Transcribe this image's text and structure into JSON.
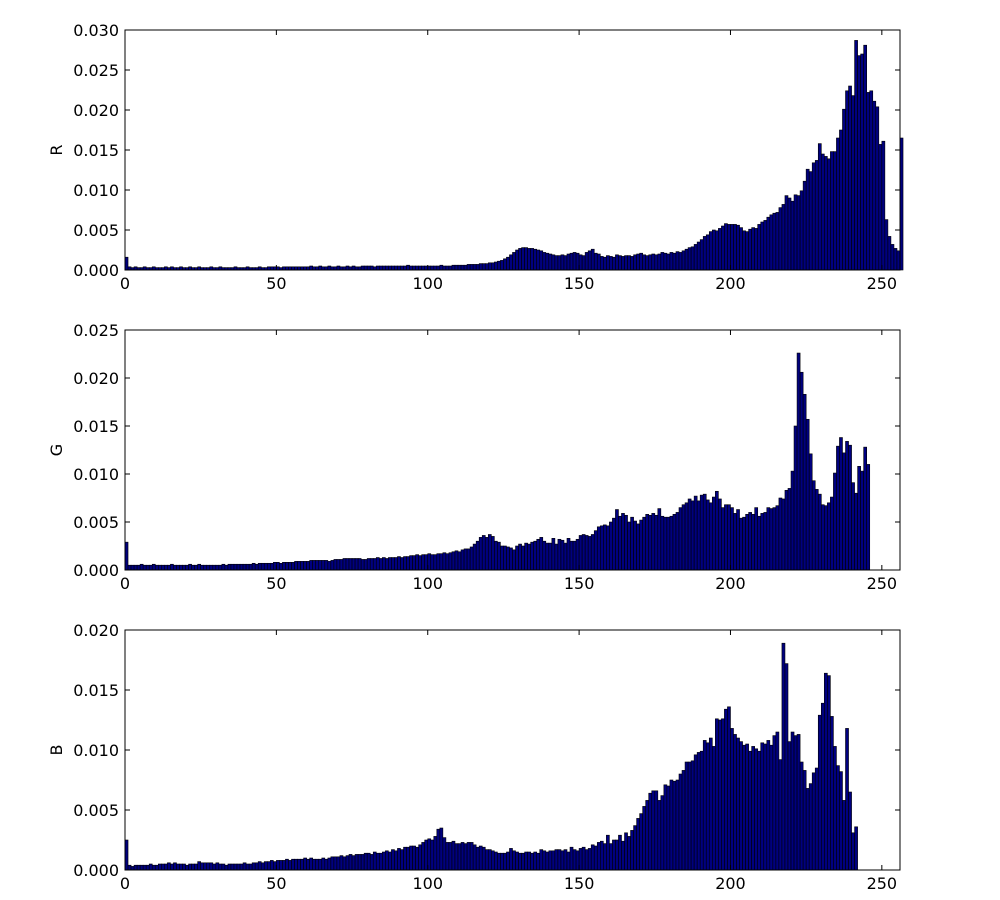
{
  "chart_data": [
    {
      "type": "bar",
      "title": "",
      "xlabel": "",
      "ylabel": "R",
      "xlim": [
        0,
        256
      ],
      "ylim": [
        0,
        0.03
      ],
      "xticks": [
        "0",
        "50",
        "100",
        "150",
        "200",
        "250"
      ],
      "yticks": [
        "0.000",
        "0.005",
        "0.010",
        "0.015",
        "0.020",
        "0.025",
        "0.030"
      ],
      "grid": false,
      "bar_color": "#00007f",
      "edge_color": "#000000",
      "bins": 256,
      "values": [
        0.0016,
        0.0004,
        0.0003,
        0.0004,
        0.0003,
        0.0003,
        0.0004,
        0.0003,
        0.0003,
        0.0004,
        0.0003,
        0.0003,
        0.0003,
        0.0004,
        0.0003,
        0.0004,
        0.0003,
        0.0003,
        0.0004,
        0.0003,
        0.0003,
        0.0004,
        0.0003,
        0.0003,
        0.0004,
        0.0003,
        0.0003,
        0.0003,
        0.0004,
        0.0003,
        0.0003,
        0.0004,
        0.0003,
        0.0003,
        0.0003,
        0.0003,
        0.0004,
        0.0003,
        0.0003,
        0.0003,
        0.0004,
        0.0003,
        0.0003,
        0.0003,
        0.0004,
        0.0003,
        0.0003,
        0.0004,
        0.0004,
        0.0004,
        0.0004,
        0.0003,
        0.0004,
        0.0004,
        0.0004,
        0.0004,
        0.0004,
        0.0004,
        0.0004,
        0.0004,
        0.0004,
        0.0005,
        0.0004,
        0.0004,
        0.0005,
        0.0004,
        0.0004,
        0.0005,
        0.0004,
        0.0004,
        0.0005,
        0.0004,
        0.0004,
        0.0005,
        0.0004,
        0.0005,
        0.0004,
        0.0004,
        0.0005,
        0.0005,
        0.0005,
        0.0005,
        0.0004,
        0.0005,
        0.0005,
        0.0005,
        0.0005,
        0.0005,
        0.0005,
        0.0005,
        0.0005,
        0.0005,
        0.0005,
        0.0006,
        0.0005,
        0.0005,
        0.0005,
        0.0005,
        0.0005,
        0.0005,
        0.0005,
        0.0005,
        0.0005,
        0.0005,
        0.0006,
        0.0005,
        0.0005,
        0.0005,
        0.0006,
        0.0006,
        0.0006,
        0.0006,
        0.0006,
        0.0007,
        0.0007,
        0.0007,
        0.0007,
        0.0008,
        0.0008,
        0.0008,
        0.0009,
        0.0009,
        0.001,
        0.0011,
        0.0012,
        0.0014,
        0.0016,
        0.0019,
        0.0022,
        0.0025,
        0.0027,
        0.0028,
        0.0028,
        0.0027,
        0.0027,
        0.0026,
        0.0025,
        0.0024,
        0.0022,
        0.0021,
        0.002,
        0.0019,
        0.0018,
        0.0018,
        0.0019,
        0.0018,
        0.002,
        0.0021,
        0.0022,
        0.0021,
        0.0019,
        0.0018,
        0.0022,
        0.0024,
        0.0026,
        0.0021,
        0.002,
        0.0017,
        0.0016,
        0.0018,
        0.0017,
        0.0016,
        0.0019,
        0.0018,
        0.0017,
        0.0018,
        0.0018,
        0.0017,
        0.0019,
        0.002,
        0.0021,
        0.0019,
        0.0018,
        0.0019,
        0.002,
        0.0019,
        0.002,
        0.0022,
        0.0021,
        0.002,
        0.0022,
        0.0021,
        0.0023,
        0.0022,
        0.0024,
        0.0026,
        0.0028,
        0.0029,
        0.0032,
        0.0035,
        0.0038,
        0.0042,
        0.0044,
        0.0048,
        0.005,
        0.0049,
        0.0052,
        0.0055,
        0.0058,
        0.0057,
        0.0057,
        0.0057,
        0.0056,
        0.0053,
        0.0049,
        0.0048,
        0.0051,
        0.0053,
        0.0052,
        0.0057,
        0.006,
        0.0062,
        0.0066,
        0.0069,
        0.0071,
        0.0072,
        0.0078,
        0.0082,
        0.0093,
        0.009,
        0.0086,
        0.0094,
        0.0093,
        0.0099,
        0.0111,
        0.0126,
        0.0123,
        0.0134,
        0.0137,
        0.0158,
        0.0145,
        0.0142,
        0.0139,
        0.0148,
        0.0148,
        0.0165,
        0.0175,
        0.0201,
        0.0224,
        0.023,
        0.0218,
        0.0287,
        0.0268,
        0.027,
        0.0281,
        0.0222,
        0.0224,
        0.0211,
        0.0204,
        0.0157,
        0.0161,
        0.0063,
        0.0042,
        0.0032,
        0.0027,
        0.0024,
        0.0165
      ]
    },
    {
      "type": "bar",
      "title": "",
      "xlabel": "",
      "ylabel": "G",
      "xlim": [
        0,
        256
      ],
      "ylim": [
        0,
        0.025
      ],
      "xticks": [
        "0",
        "50",
        "100",
        "150",
        "200",
        "250"
      ],
      "yticks": [
        "0.000",
        "0.005",
        "0.010",
        "0.015",
        "0.020",
        "0.025"
      ],
      "grid": false,
      "bar_color": "#00007f",
      "edge_color": "#000000",
      "bins": 256,
      "values": [
        0.0029,
        0.0005,
        0.0005,
        0.0005,
        0.0005,
        0.0006,
        0.0005,
        0.0005,
        0.0005,
        0.0006,
        0.0005,
        0.0005,
        0.0005,
        0.0005,
        0.0005,
        0.0006,
        0.0005,
        0.0005,
        0.0005,
        0.0005,
        0.0005,
        0.0006,
        0.0005,
        0.0005,
        0.0006,
        0.0005,
        0.0005,
        0.0005,
        0.0005,
        0.0005,
        0.0005,
        0.0005,
        0.0006,
        0.0005,
        0.0006,
        0.0006,
        0.0006,
        0.0006,
        0.0006,
        0.0006,
        0.0006,
        0.0006,
        0.0007,
        0.0006,
        0.0007,
        0.0007,
        0.0007,
        0.0007,
        0.0007,
        0.0008,
        0.0008,
        0.0007,
        0.0008,
        0.0008,
        0.0008,
        0.0008,
        0.0009,
        0.0009,
        0.0009,
        0.0009,
        0.0009,
        0.001,
        0.001,
        0.001,
        0.001,
        0.001,
        0.001,
        0.0009,
        0.001,
        0.0011,
        0.0011,
        0.0011,
        0.0012,
        0.0012,
        0.0012,
        0.0012,
        0.0012,
        0.0012,
        0.0011,
        0.0011,
        0.0012,
        0.0012,
        0.0012,
        0.0013,
        0.0012,
        0.0013,
        0.0012,
        0.0013,
        0.0013,
        0.0013,
        0.0014,
        0.0013,
        0.0014,
        0.0014,
        0.0015,
        0.0015,
        0.0016,
        0.0015,
        0.0016,
        0.0016,
        0.0017,
        0.0016,
        0.0016,
        0.0017,
        0.0017,
        0.0018,
        0.0017,
        0.0018,
        0.0019,
        0.002,
        0.0019,
        0.0021,
        0.0022,
        0.0022,
        0.0024,
        0.0027,
        0.003,
        0.0034,
        0.0036,
        0.0034,
        0.0037,
        0.0035,
        0.003,
        0.0029,
        0.0025,
        0.0025,
        0.0024,
        0.0023,
        0.0021,
        0.0025,
        0.0027,
        0.0025,
        0.0028,
        0.0027,
        0.0029,
        0.003,
        0.0032,
        0.0034,
        0.003,
        0.0028,
        0.0028,
        0.0033,
        0.0027,
        0.0032,
        0.0031,
        0.0028,
        0.0033,
        0.003,
        0.003,
        0.0032,
        0.0036,
        0.0037,
        0.0036,
        0.0035,
        0.0037,
        0.0041,
        0.0045,
        0.0046,
        0.0047,
        0.0046,
        0.005,
        0.0054,
        0.0063,
        0.0056,
        0.0059,
        0.0057,
        0.005,
        0.0055,
        0.0051,
        0.0048,
        0.0052,
        0.0055,
        0.0058,
        0.0057,
        0.0059,
        0.0057,
        0.0064,
        0.0056,
        0.0055,
        0.0055,
        0.0056,
        0.0058,
        0.006,
        0.0065,
        0.0068,
        0.007,
        0.0074,
        0.0072,
        0.0077,
        0.0072,
        0.0078,
        0.0079,
        0.0073,
        0.007,
        0.0076,
        0.0082,
        0.0074,
        0.0065,
        0.0068,
        0.0068,
        0.0065,
        0.0059,
        0.0063,
        0.0054,
        0.0055,
        0.0058,
        0.006,
        0.0058,
        0.0065,
        0.0056,
        0.0059,
        0.006,
        0.0065,
        0.0064,
        0.0065,
        0.0067,
        0.0075,
        0.0074,
        0.0083,
        0.0085,
        0.0103,
        0.015,
        0.0226,
        0.0206,
        0.0183,
        0.0157,
        0.0121,
        0.0093,
        0.0084,
        0.0079,
        0.0068,
        0.0067,
        0.007,
        0.0076,
        0.0101,
        0.0129,
        0.0138,
        0.0122,
        0.0134,
        0.013,
        0.0091,
        0.008,
        0.0108,
        0.0103,
        0.0128,
        0.011
      ]
    },
    {
      "type": "bar",
      "title": "",
      "xlabel": "",
      "ylabel": "B",
      "xlim": [
        0,
        256
      ],
      "ylim": [
        0,
        0.02
      ],
      "xticks": [
        "0",
        "50",
        "100",
        "150",
        "200",
        "250"
      ],
      "yticks": [
        "0.000",
        "0.005",
        "0.010",
        "0.015",
        "0.020"
      ],
      "grid": false,
      "bar_color": "#00007f",
      "edge_color": "#000000",
      "bins": 256,
      "values": [
        0.0025,
        0.0004,
        0.0003,
        0.0004,
        0.0004,
        0.0004,
        0.0004,
        0.0004,
        0.0005,
        0.0004,
        0.0004,
        0.0005,
        0.0005,
        0.0005,
        0.0006,
        0.0005,
        0.0006,
        0.0005,
        0.0005,
        0.0005,
        0.0004,
        0.0005,
        0.0005,
        0.0005,
        0.0007,
        0.0006,
        0.0006,
        0.0006,
        0.0006,
        0.0005,
        0.0006,
        0.0005,
        0.0005,
        0.0004,
        0.0005,
        0.0005,
        0.0005,
        0.0005,
        0.0005,
        0.0006,
        0.0005,
        0.0005,
        0.0006,
        0.0006,
        0.0007,
        0.0006,
        0.0007,
        0.0007,
        0.0008,
        0.0007,
        0.0008,
        0.0008,
        0.0008,
        0.0009,
        0.0008,
        0.0009,
        0.0009,
        0.0009,
        0.0009,
        0.001,
        0.0009,
        0.001,
        0.0009,
        0.0009,
        0.0009,
        0.001,
        0.0009,
        0.001,
        0.0011,
        0.0011,
        0.0011,
        0.0012,
        0.0011,
        0.0012,
        0.0013,
        0.0012,
        0.0013,
        0.0013,
        0.0013,
        0.0014,
        0.0014,
        0.0013,
        0.0015,
        0.0014,
        0.0014,
        0.0015,
        0.0016,
        0.0015,
        0.0017,
        0.0016,
        0.0018,
        0.0017,
        0.0019,
        0.0019,
        0.002,
        0.002,
        0.0019,
        0.0021,
        0.0023,
        0.0025,
        0.0026,
        0.0025,
        0.0028,
        0.0034,
        0.0035,
        0.0027,
        0.0023,
        0.0023,
        0.0024,
        0.0022,
        0.0022,
        0.0023,
        0.0022,
        0.0023,
        0.0023,
        0.0021,
        0.0019,
        0.002,
        0.0019,
        0.0017,
        0.0017,
        0.0016,
        0.0015,
        0.0014,
        0.0014,
        0.0014,
        0.0015,
        0.0018,
        0.0016,
        0.0015,
        0.0014,
        0.0014,
        0.0015,
        0.0015,
        0.0014,
        0.0015,
        0.0014,
        0.0017,
        0.0016,
        0.0015,
        0.0016,
        0.0016,
        0.0017,
        0.0017,
        0.0016,
        0.0017,
        0.0015,
        0.0019,
        0.0017,
        0.0016,
        0.0018,
        0.0019,
        0.0017,
        0.0018,
        0.0021,
        0.002,
        0.0023,
        0.0024,
        0.0022,
        0.0029,
        0.0022,
        0.0025,
        0.0025,
        0.0029,
        0.0024,
        0.0031,
        0.0028,
        0.0033,
        0.0037,
        0.0043,
        0.0047,
        0.0053,
        0.0058,
        0.0064,
        0.0066,
        0.0066,
        0.0058,
        0.0062,
        0.0071,
        0.007,
        0.0075,
        0.0074,
        0.0075,
        0.008,
        0.0083,
        0.009,
        0.009,
        0.0091,
        0.0096,
        0.0098,
        0.0099,
        0.0108,
        0.0106,
        0.011,
        0.0103,
        0.0126,
        0.0125,
        0.0126,
        0.0134,
        0.0136,
        0.0118,
        0.0113,
        0.011,
        0.0107,
        0.0104,
        0.0105,
        0.0099,
        0.0103,
        0.0101,
        0.0099,
        0.0106,
        0.0105,
        0.0108,
        0.0104,
        0.0112,
        0.0115,
        0.0092,
        0.0189,
        0.0172,
        0.0107,
        0.0115,
        0.0112,
        0.0113,
        0.009,
        0.0083,
        0.0068,
        0.0072,
        0.0081,
        0.0085,
        0.0129,
        0.0139,
        0.0164,
        0.0162,
        0.0128,
        0.0103,
        0.0087,
        0.0082,
        0.0058,
        0.0118,
        0.0065,
        0.0031,
        0.0036
      ]
    }
  ]
}
